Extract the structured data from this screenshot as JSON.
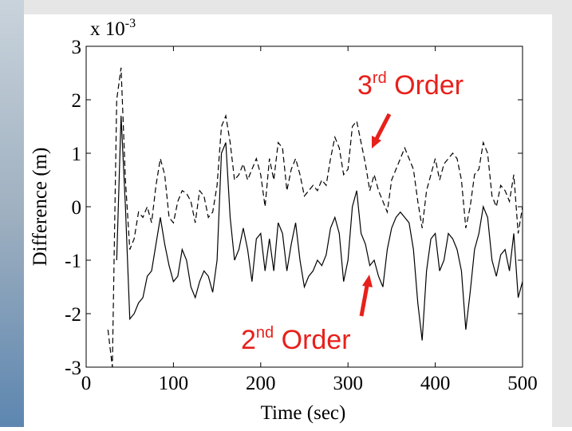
{
  "chart_data": {
    "type": "line",
    "xlabel": "Time (sec)",
    "ylabel": "Difference (m)",
    "y_multiplier": {
      "base": "x 10",
      "exponent": "-3"
    },
    "x": [
      25,
      30,
      35,
      40,
      45,
      50,
      55,
      60,
      65,
      70,
      75,
      80,
      85,
      90,
      95,
      100,
      105,
      110,
      115,
      120,
      125,
      130,
      135,
      140,
      145,
      150,
      155,
      160,
      165,
      170,
      175,
      180,
      185,
      190,
      195,
      200,
      205,
      210,
      215,
      220,
      225,
      230,
      235,
      240,
      245,
      250,
      255,
      260,
      265,
      270,
      275,
      280,
      285,
      290,
      295,
      300,
      305,
      310,
      315,
      320,
      325,
      330,
      335,
      340,
      345,
      350,
      355,
      360,
      365,
      370,
      375,
      380,
      385,
      390,
      395,
      400,
      405,
      410,
      415,
      420,
      425,
      430,
      435,
      440,
      445,
      450,
      455,
      460,
      465,
      470,
      475,
      480,
      485,
      490,
      495,
      500
    ],
    "series": [
      {
        "color": "#000000",
        "dash": true,
        "values": [
          -2.3,
          -3,
          2.0,
          2.6,
          0.5,
          -0.8,
          -0.6,
          -0.1,
          -0.2,
          0.0,
          -0.3,
          0.4,
          0.9,
          0.6,
          -0.2,
          -0.3,
          0.1,
          0.3,
          0.25,
          0.1,
          -0.3,
          0.3,
          0.2,
          -0.2,
          -0.1,
          0.4,
          1.5,
          1.7,
          1.2,
          0.5,
          0.6,
          0.8,
          0.5,
          0.7,
          0.9,
          0.6,
          0.0,
          0.9,
          0.5,
          1.2,
          1.1,
          0.3,
          0.7,
          0.9,
          0.6,
          0.2,
          0.3,
          0.4,
          0.3,
          0.5,
          0.4,
          0.9,
          1.3,
          1.1,
          0.6,
          0.7,
          1.5,
          1.6,
          1.2,
          0.8,
          0.3,
          0.6,
          0.3,
          0.1,
          -0.1,
          0.5,
          0.7,
          0.9,
          1.1,
          0.9,
          0.7,
          0.1,
          -0.4,
          0.3,
          0.6,
          0.9,
          0.5,
          0.8,
          0.9,
          1.0,
          0.9,
          0.5,
          -0.4,
          0.0,
          0.6,
          0.7,
          1.2,
          1.0,
          0.2,
          0.0,
          0.4,
          0.3,
          0.1,
          0.6,
          -0.5,
          0.0
        ]
      },
      {
        "color": "#000000",
        "dash": false,
        "values": [
          null,
          null,
          -1.0,
          1.7,
          0.0,
          -2.1,
          -2.0,
          -1.8,
          -1.7,
          -1.3,
          -1.2,
          -0.7,
          -0.2,
          -0.7,
          -1.1,
          -1.4,
          -1.3,
          -0.8,
          -1.0,
          -1.5,
          -1.7,
          -1.4,
          -1.2,
          -1.3,
          -1.6,
          -1.0,
          1.0,
          1.2,
          -0.2,
          -1.0,
          -0.8,
          -0.4,
          -0.8,
          -1.4,
          -0.6,
          -0.5,
          -1.2,
          -0.6,
          -1.2,
          -0.3,
          -0.5,
          -1.2,
          -0.7,
          -0.3,
          -1.0,
          -1.5,
          -1.3,
          -1.2,
          -1.0,
          -1.1,
          -0.9,
          -0.4,
          -0.2,
          -0.5,
          -1.4,
          -1.0,
          0.0,
          0.3,
          -0.5,
          -0.7,
          -1.1,
          -1.0,
          -1.3,
          -1.5,
          -0.8,
          -0.4,
          -0.2,
          -0.1,
          -0.2,
          -0.3,
          -0.8,
          -1.8,
          -2.5,
          -1.2,
          -0.6,
          -0.5,
          -1.2,
          -1.0,
          -0.5,
          -0.6,
          -0.8,
          -1.2,
          -2.3,
          -1.6,
          -0.8,
          -0.5,
          0.0,
          -0.2,
          -1.0,
          -1.3,
          -0.9,
          -0.8,
          -1.2,
          -0.5,
          -1.7,
          -1.4
        ]
      }
    ],
    "xlim": [
      0,
      500
    ],
    "xticks": [
      0,
      100,
      200,
      300,
      400,
      500
    ],
    "ylim": [
      -3,
      3
    ],
    "yticks": [
      -3,
      -2,
      -1,
      0,
      1,
      2,
      3
    ],
    "annotations": [
      {
        "number": "3",
        "sup": "rd",
        "rest": " Order",
        "color": "#e8201b"
      },
      {
        "number": "2",
        "sup": "nd",
        "rest": " Order",
        "color": "#e8201b"
      }
    ]
  }
}
